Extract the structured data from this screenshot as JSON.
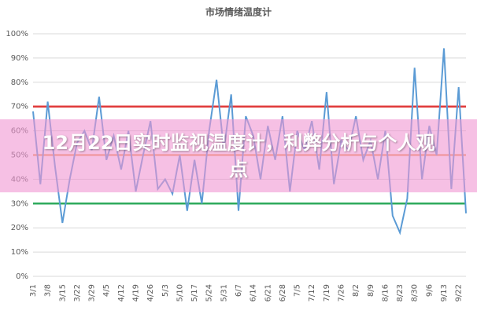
{
  "chart_data": {
    "type": "line",
    "title": "市场情绪温度计",
    "banner": "12月22日实时监视温度计，利弊分析与个人观点",
    "categories": [
      "3/1",
      null,
      "3/8",
      null,
      "3/15",
      null,
      "3/22",
      null,
      "3/29",
      null,
      "4/5",
      null,
      "4/12",
      null,
      "4/19",
      null,
      "4/26",
      null,
      "5/3",
      null,
      "5/10",
      null,
      "5/17",
      null,
      "5/24",
      null,
      "5/31",
      null,
      "6/7",
      null,
      "6/14",
      null,
      "6/21",
      null,
      "6/28",
      null,
      "7/5",
      null,
      "7/12",
      null,
      "7/19",
      null,
      "7/26",
      null,
      "8/2",
      null,
      "8/9",
      null,
      "8/16",
      null,
      "8/23",
      null,
      "8/30",
      null,
      "9/6",
      null,
      "9/13",
      null,
      "9/22",
      null
    ],
    "series": [
      {
        "color": "#5b9bd5",
        "values": [
          68,
          38,
          72,
          45,
          22,
          40,
          55,
          60,
          52,
          74,
          48,
          58,
          44,
          60,
          35,
          50,
          64,
          36,
          40,
          34,
          50,
          27,
          48,
          30,
          60,
          81,
          52,
          75,
          27,
          66,
          58,
          40,
          62,
          48,
          66,
          35,
          60,
          52,
          64,
          44,
          76,
          38,
          56,
          52,
          66,
          48,
          56,
          40,
          60,
          25,
          18,
          32,
          86,
          40,
          62,
          50,
          94,
          36,
          78,
          26
        ]
      }
    ],
    "reference_lines": [
      {
        "value": 70,
        "color": "#e03a3a"
      },
      {
        "value": 50,
        "color": "#f0a060"
      },
      {
        "value": 30,
        "color": "#2eaa5c"
      }
    ],
    "ylim": [
      0,
      100
    ],
    "yticks": [
      {
        "value": 0,
        "label": "0%"
      },
      {
        "value": 10,
        "label": "10%"
      },
      {
        "value": 20,
        "label": "20%"
      },
      {
        "value": 30,
        "label": "30%"
      },
      {
        "value": 40,
        "label": "40%"
      },
      {
        "value": 50,
        "label": "50%"
      },
      {
        "value": 60,
        "label": "60%"
      },
      {
        "value": 70,
        "label": "70%"
      },
      {
        "value": 80,
        "label": "80%"
      },
      {
        "value": 90,
        "label": "90%"
      },
      {
        "value": 100,
        "label": "100%"
      }
    ],
    "grid": true
  }
}
